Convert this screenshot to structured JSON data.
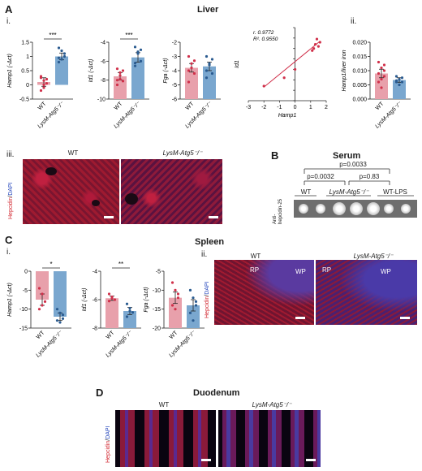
{
  "panels": {
    "A": {
      "letter": "A",
      "title": "Liver",
      "sub_i": "i.",
      "sub_ii": "ii.",
      "sub_iii": "iii.",
      "img_wt": "WT",
      "img_ko": "LysM-Atg5⁻/⁻"
    },
    "B": {
      "letter": "B",
      "title": "Serum",
      "p1": "p=0.0033",
      "p2": "p=0.0032",
      "p3": "p=0.83",
      "groups": [
        "WT",
        "LysM-Atg5⁻/⁻",
        "WT-LPS"
      ],
      "ylabel": "Anti-\nhepcidin-25"
    },
    "C": {
      "letter": "C",
      "title": "Spleen",
      "sub_i": "i.",
      "sub_ii": "ii.",
      "img_wt": "WT",
      "img_ko": "LysM-Atg5⁻/⁻",
      "rp": "RP",
      "wp": "WP"
    },
    "D": {
      "letter": "D",
      "title": "Duodenum",
      "img_wt": "WT",
      "img_ko": "LysM-Atg5⁻/⁻"
    },
    "stain_label": {
      "hep": "Hepcidin",
      "sep": "/",
      "dapi": "DAPI"
    }
  },
  "colors": {
    "wt": "#e8a0ab",
    "ko": "#7aa7cf",
    "wt_dot": "#d0304a",
    "ko_dot": "#2a5b90"
  },
  "chart_data": [
    {
      "id": "A-hamp1",
      "type": "bar",
      "categories": [
        "WT",
        "LysM-Atg5⁻/⁻"
      ],
      "values": [
        0.1,
        1.0
      ],
      "errors": [
        0.15,
        0.12
      ],
      "ylabel": "Hamp1 (-Δct)",
      "ylim": [
        -0.5,
        1.5
      ],
      "yticks": [
        -0.5,
        0.0,
        0.5,
        1.0,
        1.5
      ],
      "sig": "***",
      "points": [
        [
          0.3,
          -0.1,
          0.2,
          -0.2,
          0.15,
          0.05,
          0.25,
          0.0
        ],
        [
          1.3,
          0.9,
          1.1,
          0.8,
          1.2,
          1.0,
          0.95
        ]
      ]
    },
    {
      "id": "A-id1",
      "type": "bar",
      "categories": [
        "WT",
        "LysM-Atg5⁻/⁻"
      ],
      "values": [
        -7.6,
        -5.6
      ],
      "errors": [
        0.4,
        0.5
      ],
      "ylabel": "Id1 (-Δct)",
      "ylim": [
        -10,
        -4
      ],
      "yticks": [
        -10,
        -8,
        -6,
        -4
      ],
      "sig": "***",
      "points": [
        [
          -6.8,
          -7.2,
          -8.1,
          -8.5,
          -7.9,
          -7.0,
          -8.0,
          -7.5
        ],
        [
          -4.5,
          -5.0,
          -6.0,
          -6.5,
          -5.2,
          -4.8,
          -6.2
        ]
      ]
    },
    {
      "id": "A-fga",
      "type": "bar",
      "categories": [
        "WT",
        "LysM-Atg5⁻/⁻"
      ],
      "values": [
        -3.8,
        -3.7
      ],
      "errors": [
        0.3,
        0.3
      ],
      "ylabel": "Fga (-Δct)",
      "ylim": [
        -6,
        -2
      ],
      "yticks": [
        -6,
        -5,
        -4,
        -3,
        -2
      ],
      "sig": "",
      "points": [
        [
          -3.0,
          -3.5,
          -4.2,
          -4.8,
          -3.8,
          -3.3,
          -4.0
        ],
        [
          -3.0,
          -3.5,
          -4.2,
          -4.5,
          -3.6,
          -3.2,
          -4.0
        ]
      ]
    },
    {
      "id": "A-corr",
      "type": "scatter",
      "xlabel": "Hamp1",
      "ylabel": "Id1",
      "xlim": [
        -3,
        2
      ],
      "xticks": [
        -3,
        -2,
        -1,
        0,
        1,
        2
      ],
      "ylim": [
        -10,
        -3
      ],
      "yticks": [
        -10,
        -9,
        -8,
        -7,
        -6,
        -5,
        -4,
        -3
      ],
      "annot_r": "r. 0.9772",
      "annot_r2": "R². 0.9550",
      "x": [
        -2.0,
        -0.7,
        0.0,
        1.1,
        1.3,
        1.4,
        1.5,
        1.6,
        1.2
      ],
      "y": [
        -8.6,
        -7.8,
        -7.0,
        -5.2,
        -4.6,
        -4.1,
        -4.8,
        -4.4,
        -5.0
      ],
      "fit": [
        [
          -2.0,
          -8.7
        ],
        [
          1.6,
          -4.3
        ]
      ]
    },
    {
      "id": "A-ii",
      "type": "bar",
      "categories": [
        "WT",
        "LysM-Atg5⁻/⁻"
      ],
      "values": [
        0.009,
        0.0067
      ],
      "errors": [
        0.0015,
        0.0008
      ],
      "ylabel": "Hamp1/liver iron",
      "ylim": [
        0,
        0.02
      ],
      "yticks": [
        0,
        0.005,
        0.01,
        0.015,
        0.02
      ],
      "ytick_labels": [
        "0.000",
        "0.005",
        "0.010",
        "0.015",
        "0.020"
      ],
      "sig": "",
      "points": [
        [
          0.013,
          0.011,
          0.008,
          0.006,
          0.004,
          0.01,
          0.009,
          0.007,
          0.012
        ],
        [
          0.008,
          0.007,
          0.006,
          0.0065,
          0.005,
          0.0075,
          0.006
        ]
      ]
    },
    {
      "id": "C-hamp1",
      "type": "bar",
      "categories": [
        "WT",
        "LysM-Atg5⁻/⁻"
      ],
      "values": [
        -7.5,
        -12.0
      ],
      "errors": [
        1.5,
        1.0
      ],
      "ylabel": "Hamp1 (-Δct)",
      "ylim": [
        -15,
        0
      ],
      "yticks": [
        -15,
        -10,
        -5,
        0
      ],
      "sig": "*",
      "points": [
        [
          -4.5,
          -6.0,
          -8.0,
          -10.0,
          -9.0
        ],
        [
          -10.0,
          -11.0,
          -12.5,
          -13.0,
          -13.5,
          -11.5
        ]
      ]
    },
    {
      "id": "C-id1",
      "type": "bar",
      "categories": [
        "WT",
        "LysM-Atg5⁻/⁻"
      ],
      "values": [
        -5.9,
        -6.8
      ],
      "errors": [
        0.15,
        0.25
      ],
      "ylabel": "Id1 (-Δct)",
      "ylim": [
        -8,
        -4
      ],
      "yticks": [
        -8,
        -6,
        -4
      ],
      "sig": "**",
      "points": [
        [
          -5.6,
          -5.8,
          -6.0,
          -6.1,
          -5.9
        ],
        [
          -6.3,
          -6.6,
          -6.9,
          -7.2,
          -6.8
        ]
      ]
    },
    {
      "id": "C-fga",
      "type": "bar",
      "categories": [
        "WT",
        "LysM-Atg5⁻/⁻"
      ],
      "values": [
        -12.0,
        -14.0
      ],
      "errors": [
        1.5,
        1.5
      ],
      "ylabel": "Fga (-Δct)",
      "ylim": [
        -20,
        -5
      ],
      "yticks": [
        -20,
        -15,
        -10,
        -5
      ],
      "sig": "",
      "points": [
        [
          -8.0,
          -10.0,
          -12.0,
          -14.0,
          -15.0,
          -11.0
        ],
        [
          -10.0,
          -12.0,
          -14.0,
          -16.0,
          -18.0,
          -13.0
        ]
      ]
    }
  ]
}
